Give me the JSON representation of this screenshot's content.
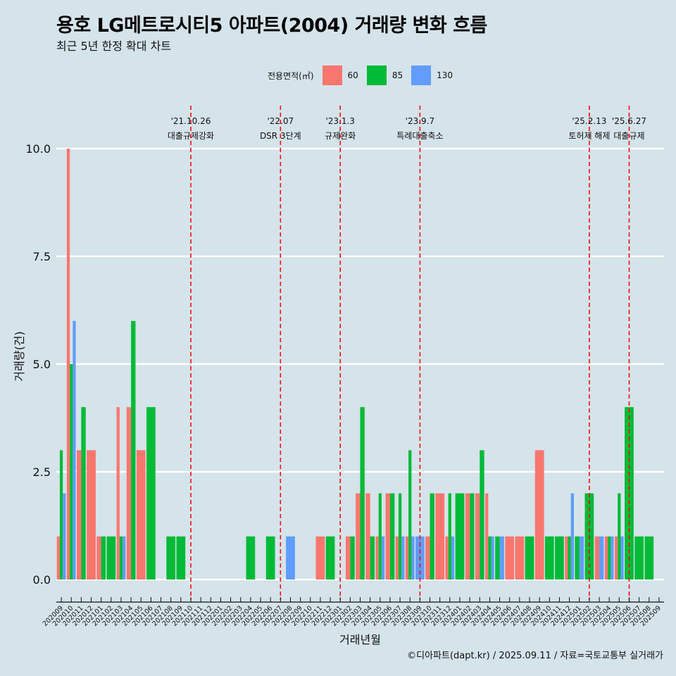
{
  "title": "용호 LG메트로시티5 아파트(2004) 거래량 변화 흐름",
  "subtitle": "최근 5년 한정 확대 차트",
  "legend": {
    "title": "전용면적(㎡)",
    "items": [
      {
        "label": "60",
        "color": "#F8766D"
      },
      {
        "label": "85",
        "color": "#00BA38"
      },
      {
        "label": "130",
        "color": "#619CFF"
      }
    ]
  },
  "caption": "©디아파트(dapt.kr) / 2025.09.11 / 자료=국토교통부 실거래가",
  "chart_data": {
    "type": "bar",
    "xlabel": "거래년월",
    "ylabel": "거래량(건)",
    "ylim": [
      0,
      10
    ],
    "yticks": [
      0.0,
      2.5,
      5.0,
      7.5,
      10.0
    ],
    "ytick_labels": [
      "0.0",
      "2.5",
      "5.0",
      "7.5",
      "10.0"
    ],
    "grid": true,
    "legend_position": "top",
    "categories": [
      "202009",
      "202010",
      "202011",
      "202012",
      "202101",
      "202102",
      "202103",
      "202104",
      "202105",
      "202106",
      "202107",
      "202108",
      "202109",
      "202110",
      "202111",
      "202112",
      "202201",
      "202202",
      "202203",
      "202204",
      "202205",
      "202206",
      "202207",
      "202208",
      "202209",
      "202210",
      "202211",
      "202212",
      "202301",
      "202302",
      "202303",
      "202304",
      "202305",
      "202306",
      "202307",
      "202308",
      "202309",
      "202310",
      "202311",
      "202312",
      "202401",
      "202402",
      "202403",
      "202404",
      "202405",
      "202406",
      "202407",
      "202408",
      "202409",
      "202410",
      "202411",
      "202412",
      "202501",
      "202502",
      "202503",
      "202504",
      "202505",
      "202506",
      "202507",
      "202508",
      "202509"
    ],
    "series": [
      {
        "name": "60",
        "values": [
          1,
          10,
          3,
          3,
          1,
          0,
          4,
          4,
          3,
          0,
          0,
          0,
          0,
          0,
          0,
          0,
          0,
          0,
          0,
          0,
          0,
          0,
          0,
          0,
          0,
          0,
          1,
          0,
          0,
          1,
          2,
          2,
          1,
          2,
          1,
          1,
          0,
          1,
          2,
          1,
          0,
          2,
          2,
          2,
          0,
          1,
          1,
          0,
          3,
          0,
          0,
          1,
          0,
          0,
          1,
          1,
          1,
          0,
          0,
          0,
          0
        ]
      },
      {
        "name": "85",
        "values": [
          3,
          5,
          4,
          0,
          1,
          1,
          1,
          6,
          0,
          4,
          0,
          1,
          1,
          0,
          0,
          0,
          0,
          0,
          0,
          1,
          0,
          1,
          0,
          0,
          0,
          0,
          0,
          1,
          0,
          1,
          4,
          1,
          2,
          2,
          2,
          3,
          0,
          2,
          0,
          2,
          2,
          2,
          3,
          1,
          1,
          0,
          0,
          1,
          0,
          1,
          1,
          1,
          1,
          2,
          0,
          1,
          2,
          4,
          1,
          1,
          0
        ]
      },
      {
        "name": "130",
        "values": [
          2,
          6,
          0,
          0,
          0,
          0,
          1,
          0,
          0,
          0,
          0,
          0,
          0,
          0,
          0,
          0,
          0,
          0,
          0,
          0,
          0,
          0,
          0,
          1,
          0,
          0,
          0,
          0,
          0,
          0,
          0,
          0,
          1,
          0,
          1,
          1,
          1,
          0,
          0,
          1,
          0,
          0,
          0,
          1,
          1,
          0,
          0,
          0,
          0,
          0,
          0,
          2,
          1,
          0,
          1,
          1,
          1,
          0,
          0,
          0,
          0
        ]
      }
    ],
    "annotations": [
      {
        "date": "'21.10.26",
        "label": "대출규제강화",
        "x": "202110"
      },
      {
        "date": "'22.07",
        "label": "DSR 3단계",
        "x": "202207"
      },
      {
        "date": "'23.1.3",
        "label": "규제완화",
        "x": "202301"
      },
      {
        "date": "'23.9.7",
        "label": "특례대출축소",
        "x": "202309"
      },
      {
        "date": "'25.2.13",
        "label": "토허제 해제",
        "x": "202502"
      },
      {
        "date": "'25.6.27",
        "label": "대출규제",
        "x": "202506"
      }
    ]
  }
}
